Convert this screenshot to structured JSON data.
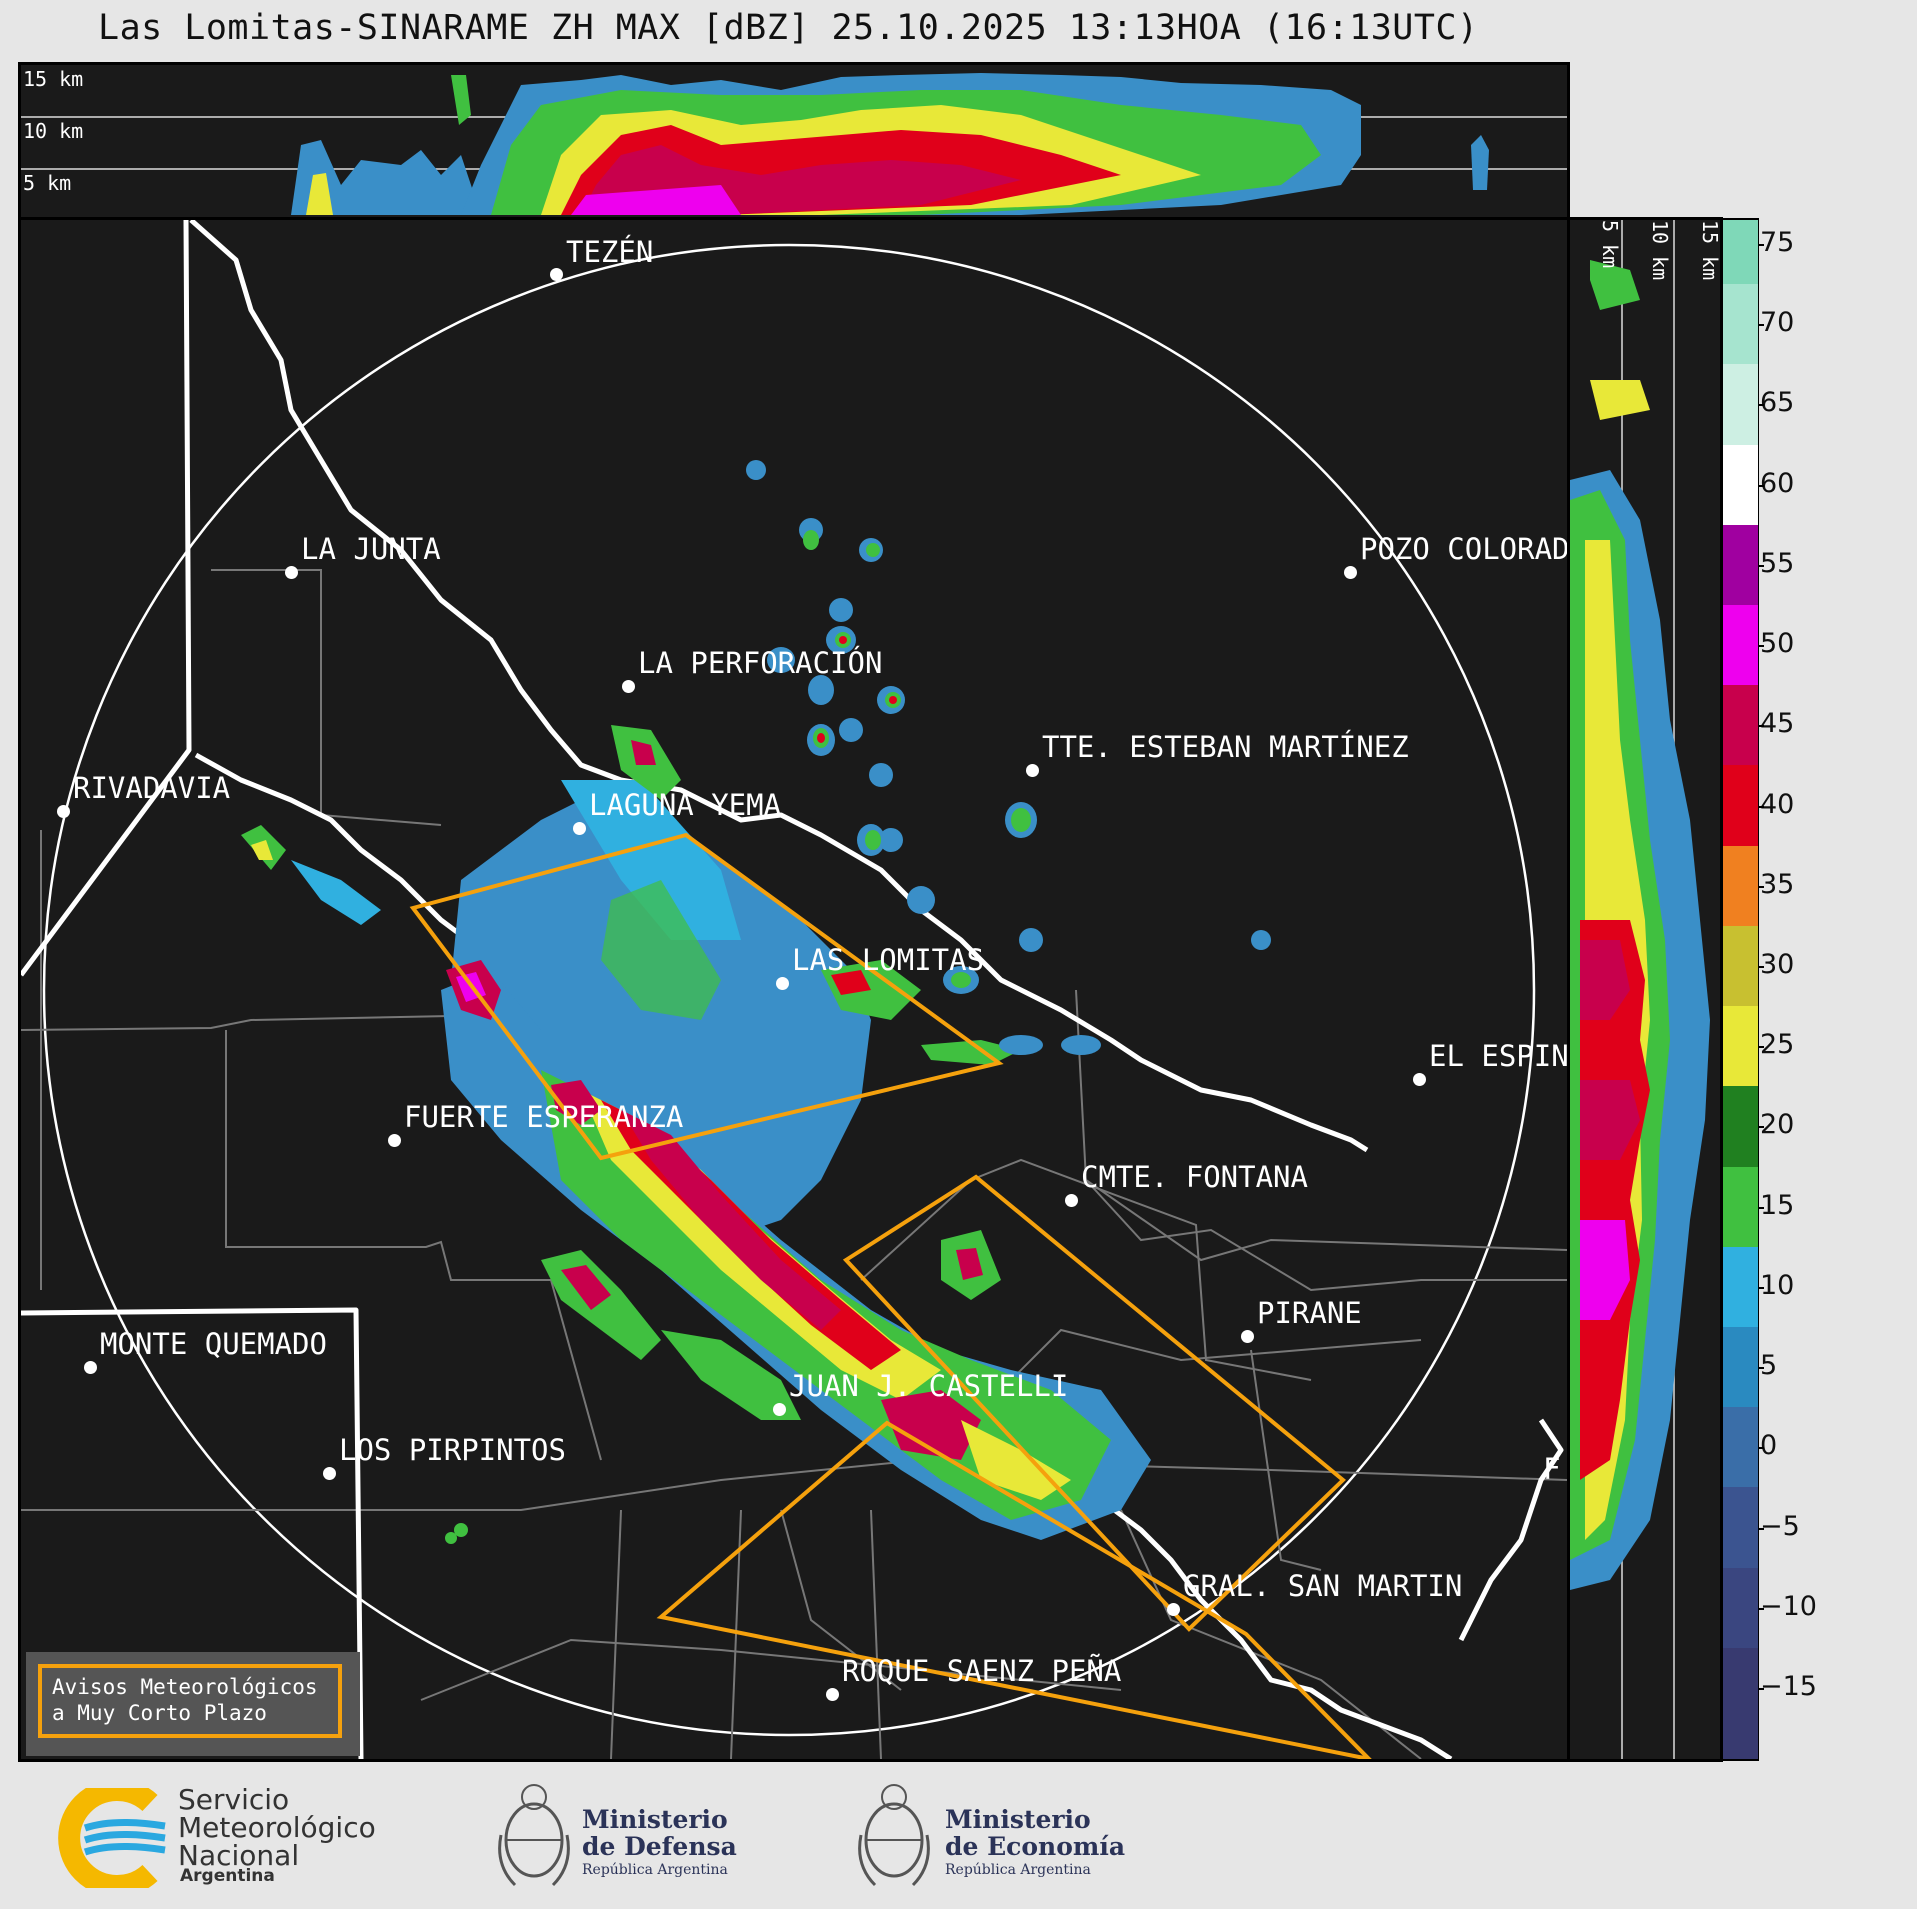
{
  "title": "Las Lomitas-SINARAME ZH MAX [dBZ] 25.10.2025 13:13HOA (16:13UTC)",
  "top_heights": [
    "15 km",
    "10 km",
    "5 km"
  ],
  "side_heights": [
    "5 km",
    "10 km",
    "15 km"
  ],
  "places": [
    {
      "name": "TEZÉN"
    },
    {
      "name": "LA JUNTA"
    },
    {
      "name": "POZO COLORAD"
    },
    {
      "name": "LA PERFORACIÓN"
    },
    {
      "name": "TTE. ESTEBAN MARTÍNEZ"
    },
    {
      "name": "RIVADAVIA"
    },
    {
      "name": "LAGUNA YEMA"
    },
    {
      "name": "LAS LOMITAS"
    },
    {
      "name": "EL ESPIN"
    },
    {
      "name": "FUERTE ESPERANZA"
    },
    {
      "name": "CMTE. FONTANA"
    },
    {
      "name": "PIRANE"
    },
    {
      "name": "MONTE QUEMADO"
    },
    {
      "name": "JUAN J. CASTELLI"
    },
    {
      "name": "LOS PIRPINTOS"
    },
    {
      "name": "GRAL. SAN MARTIN"
    },
    {
      "name": "ROQUE SAENZ PEÑA"
    },
    {
      "name": "F"
    }
  ],
  "colorbar": {
    "ticks": [
      "75",
      "70",
      "65",
      "60",
      "55",
      "50",
      "45",
      "40",
      "35",
      "30",
      "25",
      "20",
      "15",
      "10",
      "5",
      "0",
      "−5",
      "−10",
      "−15"
    ],
    "colors": [
      "#7fd8b8",
      "#a6e4cf",
      "#cdefe3",
      "#ffffff",
      "#a000a0",
      "#ee00ee",
      "#c8004c",
      "#e0001a",
      "#f08020",
      "#c8c030",
      "#e8e838",
      "#208020",
      "#40c040",
      "#30b0e0",
      "#2a8ac0",
      "#3a6ea8",
      "#3b5490",
      "#3a4680",
      "#383a70"
    ]
  },
  "warning_legend": {
    "line1": "Avisos Meteorológicos",
    "line2": "a Muy Corto Plazo"
  },
  "logos": {
    "smn_line1": "Servicio",
    "smn_line2": "Meteorológico",
    "smn_line3": "Nacional",
    "smn_line4": "Argentina",
    "defensa_line1": "Ministerio",
    "defensa_line2": "de Defensa",
    "defensa_line3": "República Argentina",
    "economia_line1": "Ministerio",
    "economia_line2": "de Economía",
    "economia_line3": "República Argentina"
  },
  "colors": {
    "warning": "#f5a10d",
    "panel_bg": "#1a1a1a",
    "smn_blue": "#2aa8e0",
    "smn_yellow": "#f5b800"
  }
}
